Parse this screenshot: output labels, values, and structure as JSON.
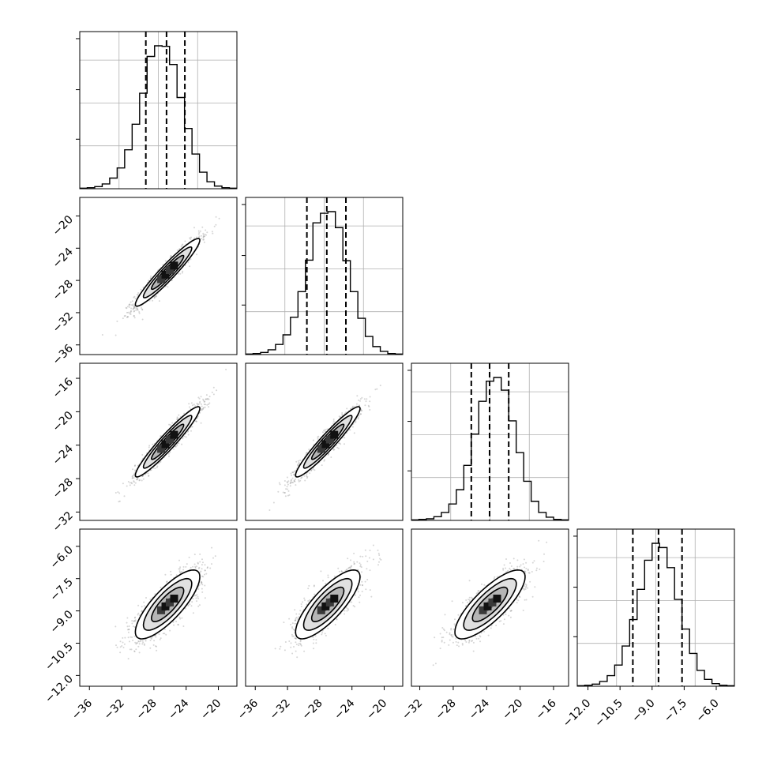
{
  "chart_data": [
    {
      "type": "histogram",
      "panel": "diag-1",
      "quantiles": [
        -28.9,
        -26.3,
        -24.0
      ],
      "bins": {
        "start": -37.2,
        "width": 0.94
      },
      "counts": [
        1,
        2,
        4,
        9,
        20,
        39,
        73,
        121,
        179,
        248,
        268,
        267,
        233,
        171,
        113,
        65,
        31,
        13,
        5,
        2,
        1
      ],
      "grid": true
    },
    {
      "type": "scatter-density",
      "panel": "p21",
      "xlim": [
        -37.2,
        -17.7
      ],
      "ylim": [
        -37.2,
        -17.7
      ],
      "yticks": [
        "−20",
        "−24",
        "−28",
        "−32",
        "−36"
      ],
      "center": [
        -26.3,
        -27.0
      ],
      "sx": 2.0,
      "sy": 2.1,
      "rho": 0.95,
      "contour_levels": [
        "1σ",
        "1.5σ",
        "2σ"
      ]
    },
    {
      "type": "histogram",
      "panel": "diag-2",
      "quantiles": [
        -29.5,
        -27.0,
        -24.6
      ],
      "bins": {
        "start": -37.2,
        "width": 0.94
      },
      "counts": [
        1,
        2,
        4,
        9,
        19,
        37,
        70,
        118,
        177,
        247,
        265,
        268,
        238,
        176,
        118,
        68,
        34,
        15,
        6,
        2,
        1
      ],
      "grid": true
    },
    {
      "type": "scatter-density",
      "panel": "p31",
      "xlim": [
        -37.2,
        -17.7
      ],
      "ylim": [
        -33.0,
        -14.2
      ],
      "yticks": [
        "−16",
        "−20",
        "−24",
        "−28",
        "−32"
      ],
      "center": [
        -26.3,
        -23.6
      ],
      "sx": 2.0,
      "sy": 2.1,
      "rho": 0.95,
      "contour_levels": [
        "1σ",
        "1.5σ",
        "2σ"
      ]
    },
    {
      "type": "scatter-density",
      "panel": "p32",
      "xlim": [
        -37.2,
        -17.7
      ],
      "ylim": [
        -33.0,
        -14.2
      ],
      "center": [
        -27.0,
        -23.6
      ],
      "sx": 2.0,
      "sy": 2.1,
      "rho": 0.95,
      "contour_levels": [
        "1σ",
        "1.5σ",
        "2σ"
      ]
    },
    {
      "type": "histogram",
      "panel": "diag-3",
      "quantiles": [
        -25.8,
        -23.6,
        -21.3
      ],
      "bins": {
        "start": -33.0,
        "width": 0.9
      },
      "counts": [
        1,
        2,
        3,
        7,
        15,
        31,
        58,
        104,
        163,
        225,
        263,
        270,
        246,
        188,
        128,
        74,
        36,
        15,
        6,
        2,
        1
      ],
      "grid": true
    },
    {
      "type": "scatter-density",
      "panel": "p41",
      "xlim": [
        -37.2,
        -17.7
      ],
      "ylim": [
        -12.5,
        -5.2
      ],
      "yticks": [
        "−6.0",
        "−7.5",
        "−9.0",
        "−10.5",
        "−12.0"
      ],
      "center": [
        -26.3,
        -8.7
      ],
      "sx": 2.0,
      "sy": 0.8,
      "rho": 0.8,
      "contour_levels": [
        "1σ",
        "1.5σ",
        "2σ"
      ]
    },
    {
      "type": "scatter-density",
      "panel": "p42",
      "xlim": [
        -37.2,
        -17.7
      ],
      "ylim": [
        -12.5,
        -5.2
      ],
      "center": [
        -27.0,
        -8.7
      ],
      "sx": 2.0,
      "sy": 0.8,
      "rho": 0.8,
      "contour_levels": [
        "1σ",
        "1.5σ",
        "2σ"
      ]
    },
    {
      "type": "scatter-density",
      "panel": "p43",
      "xlim": [
        -33.0,
        -14.2
      ],
      "ylim": [
        -12.5,
        -5.2
      ],
      "center": [
        -23.6,
        -8.7
      ],
      "sx": 2.1,
      "sy": 0.8,
      "rho": 0.8,
      "contour_levels": [
        "1σ",
        "1.5σ",
        "2σ"
      ]
    },
    {
      "type": "histogram",
      "panel": "diag-4",
      "quantiles": [
        -9.9,
        -8.7,
        -7.6
      ],
      "bins": {
        "start": -12.5,
        "width": 0.35
      },
      "counts": [
        1,
        2,
        4,
        9,
        20,
        40,
        76,
        126,
        183,
        238,
        270,
        262,
        224,
        164,
        108,
        62,
        30,
        13,
        5,
        2,
        1
      ],
      "grid": true,
      "xticks": [
        "−12.0",
        "−10.5",
        "−9.0",
        "−7.5",
        "−6.0"
      ]
    },
    {
      "type": "axis",
      "panel": "x-col1",
      "xticks": [
        "−36",
        "−32",
        "−28",
        "−24",
        "−20"
      ]
    },
    {
      "type": "axis",
      "panel": "x-col2",
      "xticks": [
        "−36",
        "−32",
        "−28",
        "−24",
        "−20"
      ]
    },
    {
      "type": "axis",
      "panel": "x-col3",
      "xticks": [
        "−32",
        "−28",
        "−24",
        "−20",
        "−16"
      ]
    }
  ]
}
